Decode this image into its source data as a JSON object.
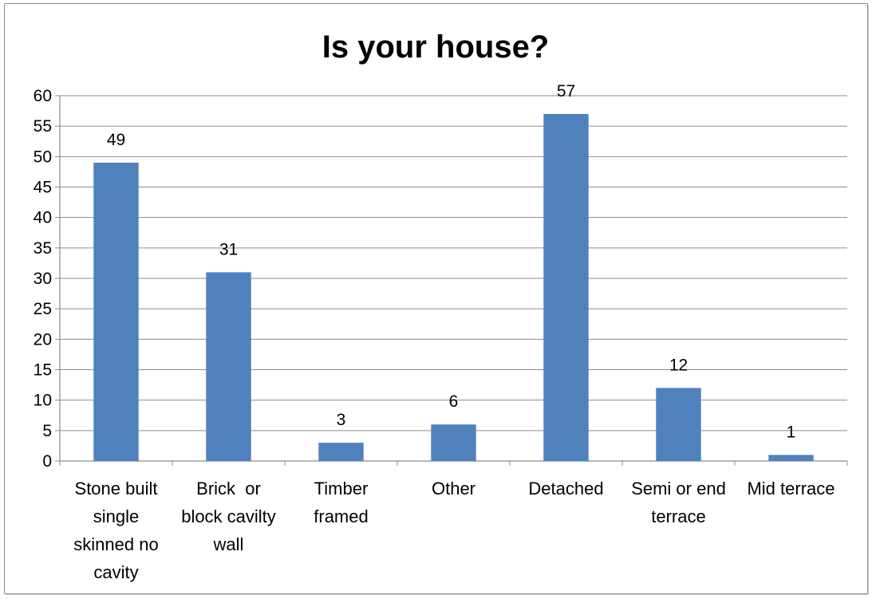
{
  "chart_data": {
    "type": "bar",
    "title": "Is your house?",
    "xlabel": "",
    "ylabel": "",
    "ylim": [
      0,
      60
    ],
    "yticks": [
      0,
      5,
      10,
      15,
      20,
      25,
      30,
      35,
      40,
      45,
      50,
      55,
      60
    ],
    "grid": true,
    "legend": "none",
    "bar_color": "#4f81bd",
    "categories": [
      "Stone built single skinned no cavity",
      "Brick  or block cavilty wall",
      "Timber framed",
      "Other",
      "Detached",
      "Semi or end terrace",
      "Mid terrace"
    ],
    "category_lines": [
      [
        "Stone built",
        "single",
        "skinned no",
        "cavity"
      ],
      [
        "Brick  or",
        "block cavilty",
        "wall"
      ],
      [
        "Timber",
        "framed"
      ],
      [
        "Other"
      ],
      [
        "Detached"
      ],
      [
        "Semi or end",
        "terrace"
      ],
      [
        "Mid terrace"
      ]
    ],
    "values": [
      49,
      31,
      3,
      6,
      57,
      12,
      1
    ],
    "data_labels": [
      "49",
      "31",
      "3",
      "6",
      "57",
      "12",
      "1"
    ]
  }
}
